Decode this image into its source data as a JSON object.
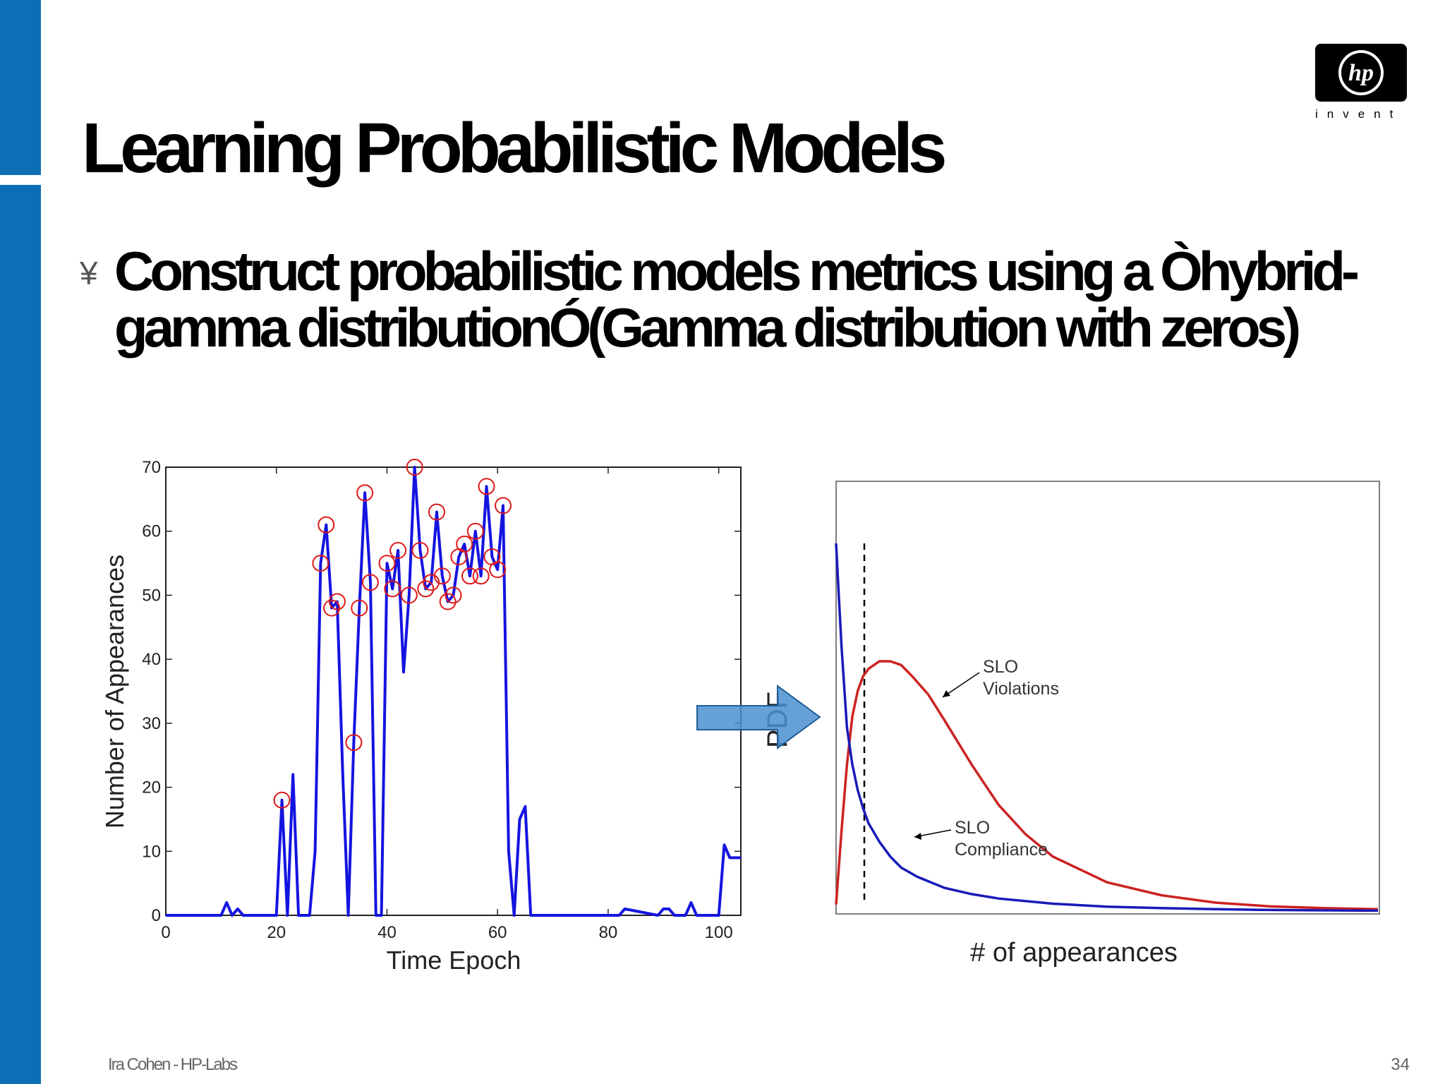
{
  "slide": {
    "title": "Learning Probabilistic Models",
    "bullet_mark": "¥",
    "bullet": "Construct probabilistic models metrics using a Òhybrid-gamma distributionÓ(Gamma distribution with zeros)",
    "footer": "Ira Cohen - HP-Labs",
    "page_number": "34",
    "logo_tagline": "invent",
    "colors": {
      "sidebar": "#0c6fb5",
      "arrow": "#4a8fd0"
    }
  },
  "chart_data": [
    {
      "type": "line",
      "xlabel": "Time Epoch",
      "ylabel": "Number of Appearances",
      "xlim": [
        0,
        104
      ],
      "ylim": [
        0,
        70
      ],
      "xticks": [
        0,
        20,
        40,
        60,
        80,
        100
      ],
      "yticks": [
        0,
        10,
        20,
        30,
        40,
        50,
        60,
        70
      ],
      "grid": false,
      "series": [
        {
          "color": "#1414e0",
          "x": [
            0,
            10,
            11,
            12,
            13,
            14,
            15,
            16,
            17,
            18,
            19,
            20,
            21,
            22,
            23,
            24,
            25,
            26,
            27,
            28,
            29,
            30,
            31,
            32,
            33,
            34,
            35,
            36,
            37,
            38,
            39,
            40,
            41,
            42,
            43,
            44,
            45,
            46,
            47,
            48,
            49,
            50,
            51,
            52,
            53,
            54,
            55,
            56,
            57,
            58,
            59,
            60,
            61,
            62,
            63,
            64,
            65,
            66,
            80,
            82,
            83,
            89,
            90,
            91,
            92,
            94,
            95,
            96,
            99,
            100,
            101,
            102,
            103,
            104
          ],
          "y": [
            0,
            0,
            2,
            0,
            1,
            0,
            0,
            0,
            0,
            0,
            0,
            0,
            18,
            0,
            22,
            0,
            0,
            0,
            10,
            55,
            61,
            48,
            49,
            22,
            0,
            27,
            48,
            66,
            52,
            0,
            0,
            55,
            51,
            57,
            38,
            50,
            70,
            57,
            51,
            52,
            63,
            53,
            49,
            50,
            56,
            58,
            53,
            60,
            53,
            67,
            56,
            54,
            64,
            10,
            0,
            15,
            17,
            0,
            0,
            0,
            1,
            0,
            1,
            1,
            0,
            0,
            2,
            0,
            0,
            0,
            11,
            9,
            9,
            9
          ],
          "marker_indices": [
            12,
            19,
            20,
            21,
            22,
            25,
            26,
            27,
            28,
            31,
            32,
            33,
            35,
            36,
            37,
            38,
            39,
            40,
            41,
            42,
            43,
            44,
            45,
            46,
            47,
            48,
            49,
            50,
            51,
            52
          ]
        }
      ]
    },
    {
      "type": "line",
      "xlabel": "# of appearances",
      "ylabel": "PDF",
      "threshold_line": "dashed",
      "series": [
        {
          "name": "SLO Violations",
          "color": "#cc2222",
          "x": [
            0,
            0.01,
            0.02,
            0.03,
            0.04,
            0.05,
            0.06,
            0.08,
            0.1,
            0.12,
            0.14,
            0.17,
            0.2,
            0.25,
            0.3,
            0.35,
            0.4,
            0.5,
            0.6,
            0.7,
            0.8,
            0.9,
            1.0
          ],
          "y": [
            0.02,
            0.22,
            0.4,
            0.53,
            0.6,
            0.64,
            0.66,
            0.68,
            0.68,
            0.67,
            0.64,
            0.59,
            0.52,
            0.4,
            0.29,
            0.21,
            0.15,
            0.08,
            0.045,
            0.025,
            0.015,
            0.01,
            0.007
          ]
        },
        {
          "name": "SLO Compliance",
          "color": "#1a1ab8",
          "x": [
            0,
            0.005,
            0.01,
            0.02,
            0.03,
            0.04,
            0.05,
            0.06,
            0.08,
            0.1,
            0.12,
            0.15,
            0.2,
            0.25,
            0.3,
            0.4,
            0.5,
            0.6,
            0.7,
            0.8,
            1.0
          ],
          "y": [
            1.0,
            0.86,
            0.72,
            0.5,
            0.4,
            0.33,
            0.28,
            0.24,
            0.19,
            0.15,
            0.12,
            0.095,
            0.065,
            0.048,
            0.036,
            0.022,
            0.014,
            0.01,
            0.007,
            0.005,
            0.003
          ]
        }
      ],
      "annotations": [
        {
          "lines": [
            "SLO",
            "Violations"
          ],
          "series": "SLO Violations"
        },
        {
          "lines": [
            "SLO",
            "Compliance"
          ],
          "series": "SLO Compliance"
        }
      ]
    }
  ]
}
